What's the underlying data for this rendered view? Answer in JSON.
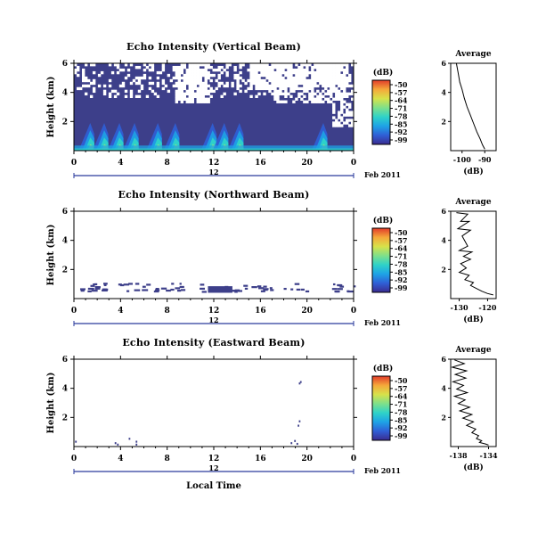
{
  "figure": {
    "xlabel": "Local Time",
    "date_label": "Feb 2011",
    "bar_label": "12",
    "colorbar_unit": "(dB)",
    "colorbar_ticks": [
      "-50",
      "-57",
      "-64",
      "-71",
      "-78",
      "-85",
      "-92",
      "-99"
    ],
    "average_title": "Average",
    "average_xlabel": "(dB)"
  },
  "colors": {
    "colormap": [
      "#3b2b8f",
      "#2f5fd6",
      "#1ea3e6",
      "#2fd3c8",
      "#7fe08a",
      "#d7e24a",
      "#f5a83a",
      "#e23b2a"
    ],
    "background_noise": "#3d3f8a",
    "trace": "#000000"
  },
  "chart_data": [
    {
      "type": "heatmap",
      "title": "Echo Intensity (Vertical Beam)",
      "xlabel": "",
      "ylabel": "Height (km)",
      "xlim": [
        0,
        24
      ],
      "ylim": [
        0,
        6
      ],
      "x_ticks": [
        "0",
        "4",
        "8",
        "12",
        "16",
        "20",
        "0"
      ],
      "y_ticks": [
        "6",
        "4",
        "2"
      ],
      "colorbar_range_db": [
        -99,
        -50
      ],
      "coverage": "dense noise field 0-6 km with white gaps aloft (above ~3.5 km); bright plume bands (-85 to -64 dB) below ~2 km",
      "plume_events_hours": [
        1.5,
        2.7,
        4.0,
        5.3,
        7.3,
        8.8,
        12.0,
        13.0,
        14.3,
        21.5
      ]
    },
    {
      "type": "heatmap",
      "title": "Echo Intensity (Northward Beam)",
      "xlabel": "",
      "ylabel": "Height (km)",
      "xlim": [
        0,
        24
      ],
      "ylim": [
        0,
        6
      ],
      "x_ticks": [
        "0",
        "4",
        "8",
        "12",
        "16",
        "20",
        "0"
      ],
      "y_ticks": [
        "6",
        "4",
        "2"
      ],
      "colorbar_range_db": [
        -99,
        -50
      ],
      "coverage": "sparse weak echoes near 0.5-1 km, densest 11-14 h"
    },
    {
      "type": "heatmap",
      "title": "Echo Intensity (Eastward Beam)",
      "xlabel": "Local Time",
      "ylabel": "Height (km)",
      "xlim": [
        0,
        24
      ],
      "ylim": [
        0,
        6
      ],
      "x_ticks": [
        "0",
        "4",
        "8",
        "12",
        "16",
        "20",
        "0"
      ],
      "y_ticks": [
        "6",
        "4",
        "2"
      ],
      "colorbar_range_db": [
        -99,
        -50
      ],
      "coverage": "very sparse isolated points near 3.5-5 h, 18.3-19.5 h and 0 h"
    },
    {
      "type": "line",
      "title": "Average",
      "xlabel": "(dB)",
      "ylabel": "",
      "x_ticks": [
        "-100",
        "-90"
      ],
      "y_ticks": [
        "6",
        "4",
        "2"
      ],
      "xlim": [
        -105,
        -85
      ],
      "ylim": [
        0,
        6
      ],
      "x": [
        -102.5,
        -101.8,
        -101.0,
        -100.0,
        -99.0,
        -97.8,
        -96.5,
        -95.0,
        -93.5,
        -92.0,
        -91.0,
        -90.0
      ],
      "y": [
        6.0,
        5.4,
        4.7,
        4.2,
        3.6,
        3.0,
        2.5,
        1.9,
        1.3,
        0.8,
        0.4,
        0.1
      ]
    },
    {
      "type": "line",
      "title": "Average",
      "xlabel": "(dB)",
      "ylabel": "",
      "x_ticks": [
        "-130",
        "-120"
      ],
      "y_ticks": [
        "6",
        "4",
        "2"
      ],
      "xlim": [
        -133,
        -117
      ],
      "ylim": [
        0,
        6
      ],
      "x": [
        -131.0,
        -127.0,
        -129.5,
        -126.5,
        -130.5,
        -126.0,
        -129.0,
        -127.0,
        -130.0,
        -125.5,
        -128.5,
        -126.0,
        -129.5,
        -127.5,
        -130.0,
        -126.5,
        -128.0,
        -125.0,
        -126.0,
        -124.0,
        -122.0,
        -120.0,
        -118.0
      ],
      "y": [
        5.9,
        5.8,
        5.3,
        5.3,
        4.8,
        4.7,
        4.3,
        3.6,
        3.3,
        3.2,
        2.9,
        2.7,
        2.4,
        2.1,
        1.8,
        1.6,
        1.3,
        1.1,
        0.9,
        0.7,
        0.5,
        0.35,
        0.25
      ]
    },
    {
      "type": "line",
      "title": "Average",
      "xlabel": "(dB)",
      "ylabel": "",
      "x_ticks": [
        "-138",
        "-134"
      ],
      "y_ticks": [
        "6",
        "4",
        "2"
      ],
      "xlim": [
        -139,
        -133
      ],
      "ylim": [
        0,
        6
      ],
      "x": [
        -138.5,
        -137.2,
        -138.8,
        -136.9,
        -138.4,
        -137.0,
        -138.7,
        -137.3,
        -138.2,
        -136.8,
        -138.5,
        -137.1,
        -138.0,
        -136.5,
        -137.8,
        -136.2,
        -137.4,
        -136.0,
        -136.9,
        -135.7,
        -136.2,
        -135.3,
        -135.6,
        -134.9,
        -135.2,
        -134.4,
        -134.0
      ],
      "y": [
        5.95,
        5.7,
        5.45,
        5.2,
        4.95,
        4.7,
        4.45,
        4.2,
        3.95,
        3.7,
        3.45,
        3.2,
        2.95,
        2.7,
        2.45,
        2.2,
        1.95,
        1.7,
        1.45,
        1.2,
        0.95,
        0.75,
        0.55,
        0.4,
        0.28,
        0.18,
        0.1
      ]
    }
  ]
}
